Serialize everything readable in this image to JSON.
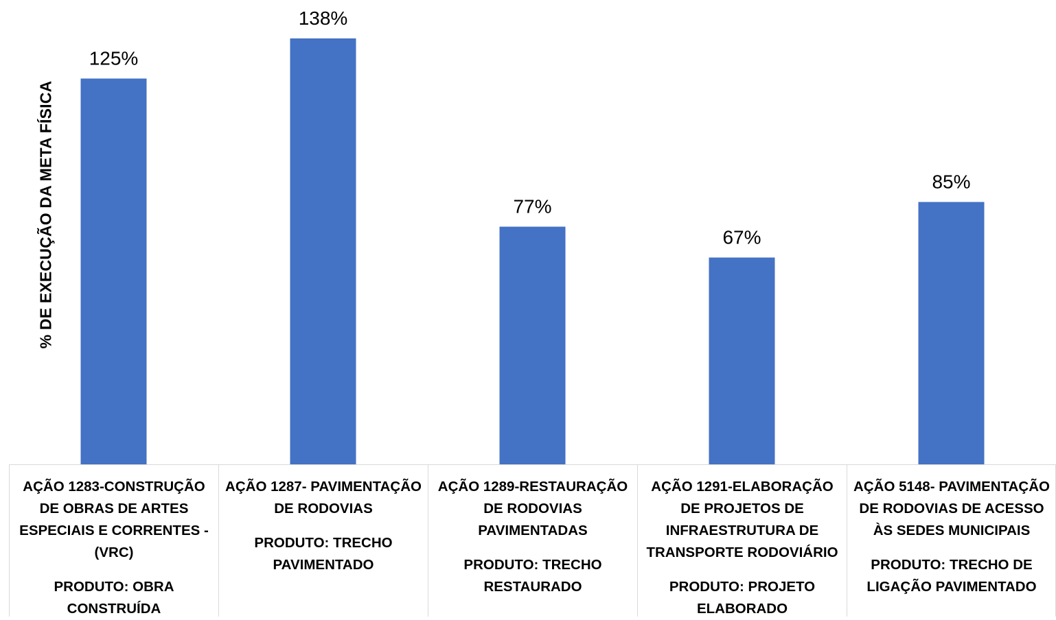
{
  "chart_data": {
    "type": "bar",
    "title": "",
    "xlabel": "",
    "ylabel": "% DE EXECUÇÃO DA META FÍSICA",
    "ylim": [
      0,
      140
    ],
    "grid": false,
    "legend": "none",
    "bar_color": "#4472C4",
    "categories": [
      {
        "name": "AÇÃO 1283-CONSTRUÇÃO DE OBRAS DE ARTES ESPECIAIS E CORRENTES - (VRC)",
        "product": "PRODUTO: OBRA CONSTRUÍDA"
      },
      {
        "name": "AÇÃO 1287- PAVIMENTAÇÃO DE RODOVIAS",
        "product": "PRODUTO: TRECHO PAVIMENTADO"
      },
      {
        "name": "AÇÃO 1289-RESTAURAÇÃO DE RODOVIAS PAVIMENTADAS",
        "product": "PRODUTO: TRECHO RESTAURADO"
      },
      {
        "name": "AÇÃO 1291-ELABORAÇÃO DE PROJETOS DE INFRAESTRUTURA DE TRANSPORTE RODOVIÁRIO",
        "product": "PRODUTO: PROJETO ELABORADO"
      },
      {
        "name": "AÇÃO 5148- PAVIMENTAÇÃO DE RODOVIAS DE ACESSO ÀS SEDES MUNICIPAIS",
        "product": "PRODUTO: TRECHO DE LIGAÇÃO PAVIMENTADO"
      }
    ],
    "values": [
      125,
      138,
      77,
      67,
      85
    ],
    "data_labels": [
      "125%",
      "138%",
      "77%",
      "67%",
      "85%"
    ]
  }
}
